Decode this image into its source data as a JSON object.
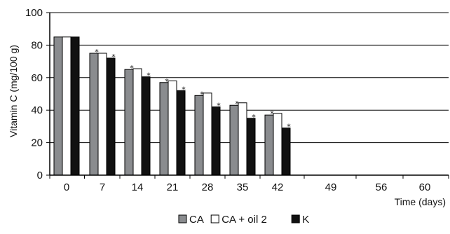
{
  "chart_data": {
    "type": "bar",
    "categories": [
      "0",
      "7",
      "14",
      "21",
      "28",
      "35",
      "42",
      "49",
      "56",
      "60"
    ],
    "series": [
      {
        "name": "CA",
        "color": "#8a8c8f",
        "values": [
          85,
          75,
          65,
          57,
          49,
          43,
          37,
          null,
          null,
          null
        ]
      },
      {
        "name": "CA + oil 2",
        "color": "#ffffff",
        "values": [
          85,
          75,
          65.5,
          58,
          50.5,
          44.5,
          38,
          null,
          null,
          null
        ]
      },
      {
        "name": "K",
        "color": "#111111",
        "values": [
          85,
          72,
          60.5,
          52,
          42,
          35,
          29,
          null,
          null,
          null
        ]
      }
    ],
    "significance_markers": {
      "symbol": "*",
      "CA": [
        false,
        true,
        true,
        true,
        true,
        true,
        true,
        false,
        false,
        false
      ],
      "K": [
        false,
        true,
        true,
        true,
        true,
        true,
        true,
        false,
        false,
        false
      ]
    },
    "ylabel": "Vitamin C (mg/100 g)",
    "xlabel": "Time (days)",
    "ylim": [
      0,
      100
    ],
    "yticks": [
      "0",
      "20",
      "40",
      "60",
      "80",
      "100"
    ],
    "grid": "horizontal",
    "legend_position": "bottom-center"
  }
}
